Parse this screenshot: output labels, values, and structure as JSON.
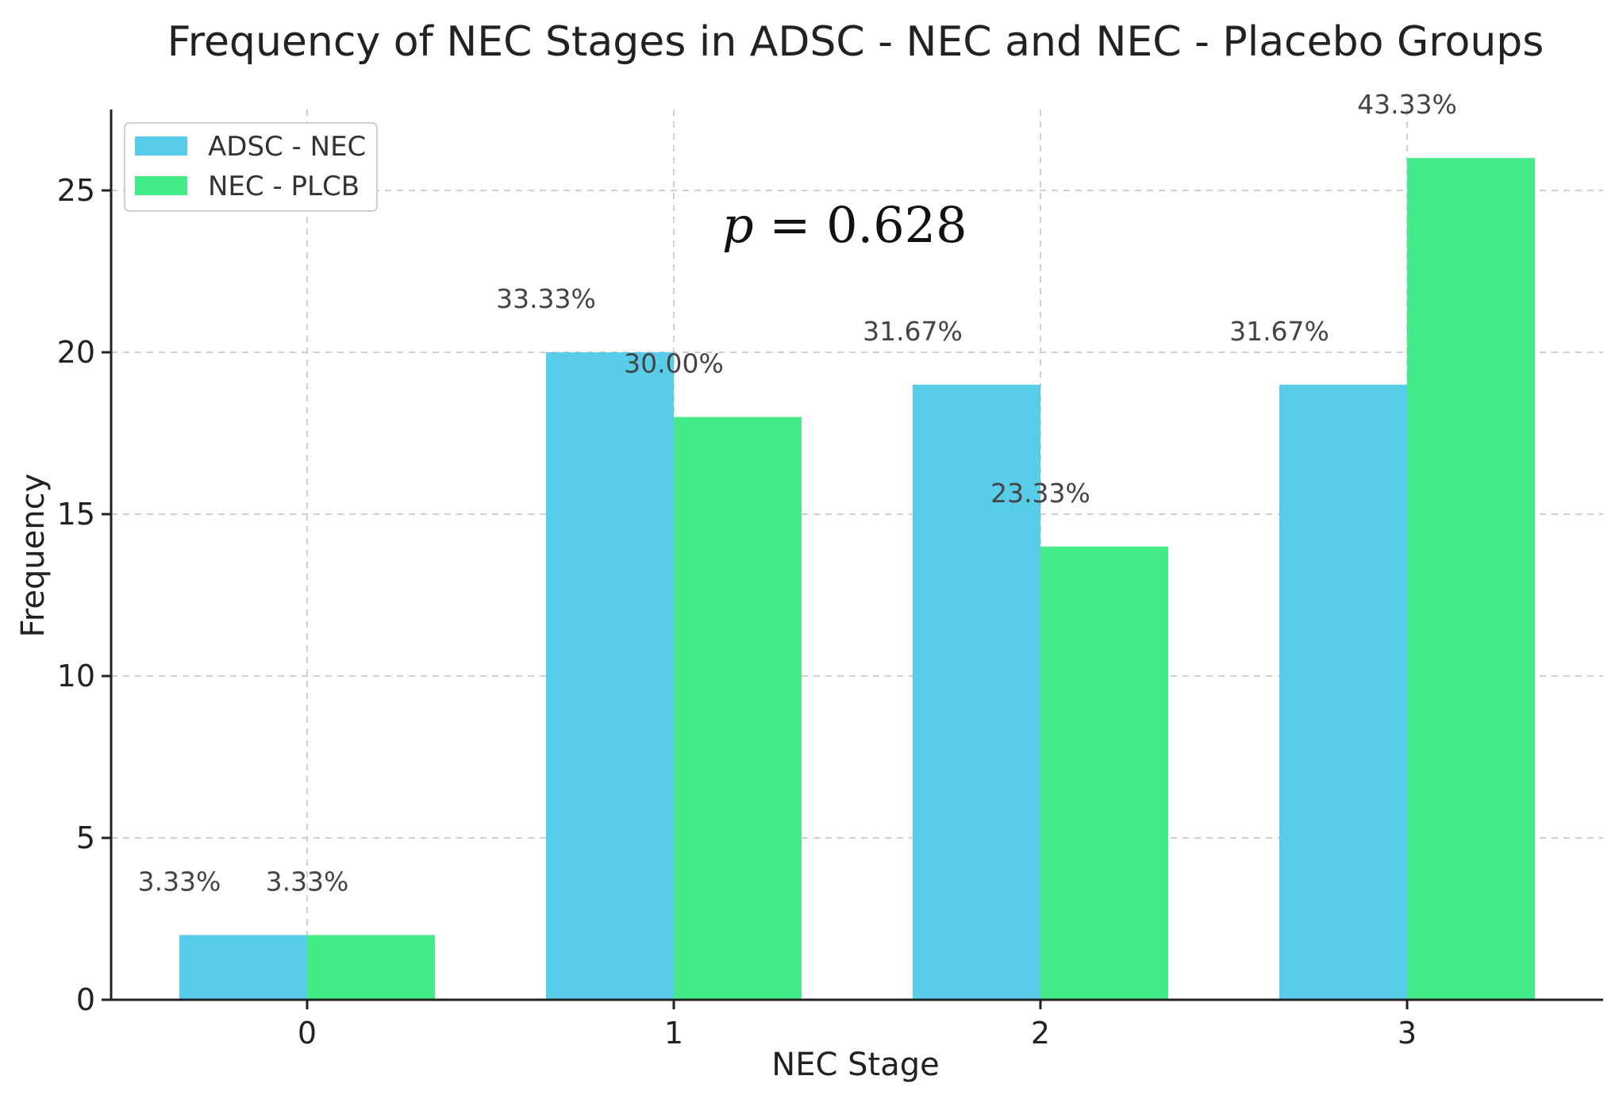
{
  "chart_data": {
    "type": "bar",
    "title": "Frequency of NEC Stages in ADSC - NEC and NEC - Placebo Groups",
    "xlabel": "NEC Stage",
    "ylabel": "Frequency",
    "categories": [
      "0",
      "1",
      "2",
      "3"
    ],
    "ylim": [
      0,
      27.5
    ],
    "yticks": [
      0,
      5,
      10,
      15,
      20,
      25
    ],
    "grid": true,
    "legend_position": "top-left",
    "annotation": {
      "italic_part": "p",
      "rest": " = 0.628"
    },
    "series": [
      {
        "name": "ADSC - NEC",
        "color": "#57cdea",
        "values": [
          2,
          20,
          19,
          19
        ],
        "labels": [
          "3.33%",
          "33.33%",
          "31.67%",
          "31.67%"
        ]
      },
      {
        "name": "NEC - PLCB",
        "color": "#44ec88",
        "values": [
          2,
          18,
          14,
          26
        ],
        "labels": [
          "3.33%",
          "30.00%",
          "23.33%",
          "43.33%"
        ]
      }
    ]
  }
}
